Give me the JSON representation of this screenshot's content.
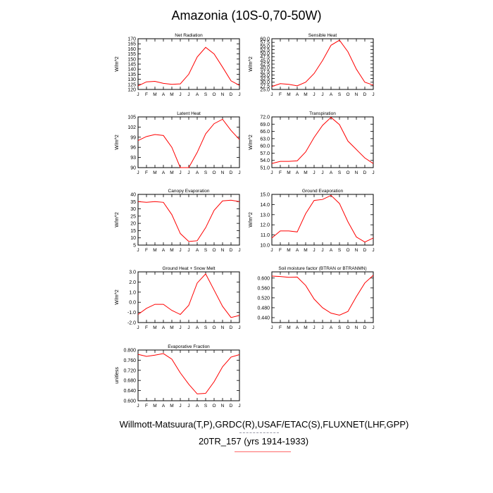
{
  "page": {
    "title": "Amazonia (10S-0,70-50W)",
    "caption_line1": "Willmott-Matsuura(T,P),GRDC(R),USAF/ETAC(S),FLUXNET(LHF,GPP)",
    "caption_line2": "20TR_157 (yrs 1914-1933)",
    "line_color": "#ff0000"
  },
  "chart_data": [
    {
      "type": "line",
      "title": "Net Radiation",
      "ylabel": "W/m^2",
      "categories": [
        "J",
        "F",
        "M",
        "A",
        "M",
        "J",
        "J",
        "A",
        "S",
        "O",
        "N",
        "D",
        "J"
      ],
      "yticks": [
        "120",
        "125",
        "130",
        "135",
        "140",
        "145",
        "150",
        "155",
        "160",
        "165",
        "170"
      ],
      "ylim": [
        120,
        170
      ],
      "values": [
        123.5,
        127.5,
        128,
        126,
        125,
        125.5,
        135,
        152,
        161.5,
        155,
        142,
        128.5,
        124
      ],
      "grid": false
    },
    {
      "type": "line",
      "title": "Sensible Heat",
      "ylabel": "W/m^2",
      "categories": [
        "J",
        "F",
        "M",
        "A",
        "M",
        "J",
        "J",
        "A",
        "S",
        "O",
        "N",
        "D",
        "J"
      ],
      "yticks": [
        "25.0",
        "27.5",
        "30.0",
        "32.5",
        "35.0",
        "37.5",
        "40.0",
        "42.5",
        "45.0",
        "47.5",
        "50.0",
        "52.5",
        "55.0",
        "57.5",
        "60.0"
      ],
      "ylim": [
        25,
        60
      ],
      "values": [
        27,
        29,
        28.5,
        27.5,
        30,
        36,
        45,
        55.5,
        59,
        51,
        39,
        30,
        28
      ],
      "grid": false
    },
    {
      "type": "line",
      "title": "Latent Heat",
      "ylabel": "W/m^2",
      "categories": [
        "J",
        "F",
        "M",
        "A",
        "M",
        "J",
        "J",
        "A",
        "S",
        "O",
        "N",
        "D",
        "J"
      ],
      "yticks": [
        "90",
        "93",
        "96",
        "99",
        "102",
        "105"
      ],
      "ylim": [
        90,
        105
      ],
      "values": [
        98,
        99.2,
        99.8,
        99.5,
        96,
        90,
        90,
        94.5,
        100,
        103,
        104.3,
        101,
        98.3
      ],
      "grid": false
    },
    {
      "type": "line",
      "title": "Transpiration",
      "ylabel": "W/m^2",
      "categories": [
        "J",
        "F",
        "M",
        "A",
        "M",
        "J",
        "J",
        "A",
        "S",
        "O",
        "N",
        "D",
        "J"
      ],
      "yticks": [
        "51.0",
        "54.0",
        "57.0",
        "60.0",
        "63.0",
        "66.0",
        "69.0",
        "72.0"
      ],
      "ylim": [
        51,
        72
      ],
      "values": [
        52.7,
        53.6,
        53.6,
        53.8,
        57.5,
        63.5,
        68.5,
        71.8,
        68.8,
        62,
        58.5,
        55,
        52.7
      ],
      "grid": false
    },
    {
      "type": "line",
      "title": "Canopy Evaporation",
      "ylabel": "W/m^2",
      "categories": [
        "J",
        "F",
        "M",
        "A",
        "M",
        "J",
        "J",
        "A",
        "S",
        "O",
        "N",
        "D",
        "J"
      ],
      "yticks": [
        "5",
        "10",
        "15",
        "20",
        "25",
        "30",
        "35",
        "40"
      ],
      "ylim": [
        5,
        40
      ],
      "values": [
        35,
        34.5,
        35,
        34.5,
        26,
        13,
        7.5,
        8,
        17,
        29,
        35.5,
        36,
        35
      ],
      "grid": false
    },
    {
      "type": "line",
      "title": "Ground Evaporation",
      "ylabel": "W/m^2",
      "categories": [
        "J",
        "F",
        "M",
        "A",
        "M",
        "J",
        "J",
        "A",
        "S",
        "O",
        "N",
        "D",
        "J"
      ],
      "yticks": [
        "10.0",
        "11.0",
        "12.0",
        "13.0",
        "14.0",
        "15.0"
      ],
      "ylim": [
        10,
        15
      ],
      "values": [
        10.7,
        11.4,
        11.4,
        11.3,
        13.1,
        14.4,
        14.5,
        14.9,
        14.1,
        12.3,
        10.8,
        10.3,
        10.7
      ],
      "grid": false
    },
    {
      "type": "line",
      "title": "Ground Heat + Snow Melt",
      "ylabel": "W/m^2",
      "categories": [
        "J",
        "F",
        "M",
        "A",
        "M",
        "J",
        "J",
        "A",
        "S",
        "O",
        "N",
        "D",
        "J"
      ],
      "yticks": [
        "-2.0",
        "-1.0",
        "0.0",
        "1.0",
        "2.0",
        "3.0"
      ],
      "ylim": [
        -2,
        3
      ],
      "values": [
        -1.2,
        -0.6,
        -0.2,
        -0.2,
        -0.8,
        -1.2,
        -0.3,
        1.9,
        2.8,
        1.2,
        -0.4,
        -1.5,
        -1.3
      ],
      "grid": false
    },
    {
      "type": "line",
      "title": "Soil moisture factor (BTRAN or BTRANMN)",
      "ylabel": "",
      "categories": [
        "J",
        "F",
        "M",
        "A",
        "M",
        "J",
        "J",
        "A",
        "S",
        "O",
        "N",
        "D",
        "J"
      ],
      "yticks": [
        "0.440",
        "0.480",
        "0.520",
        "0.560",
        "0.600"
      ],
      "ylim": [
        0.42,
        0.625
      ],
      "values": [
        0.608,
        0.606,
        0.603,
        0.604,
        0.57,
        0.515,
        0.48,
        0.458,
        0.45,
        0.465,
        0.525,
        0.58,
        0.611
      ],
      "grid": false
    },
    {
      "type": "line",
      "title": "Evaporative Fraction",
      "ylabel": "unitless",
      "categories": [
        "J",
        "F",
        "M",
        "A",
        "M",
        "J",
        "J",
        "A",
        "S",
        "O",
        "N",
        "D",
        "J"
      ],
      "yticks": [
        "0.600",
        "0.640",
        "0.680",
        "0.720",
        "0.760",
        "0.800"
      ],
      "ylim": [
        0.6,
        0.8
      ],
      "values": [
        0.783,
        0.775,
        0.78,
        0.786,
        0.764,
        0.71,
        0.665,
        0.627,
        0.629,
        0.675,
        0.734,
        0.772,
        0.782
      ],
      "grid": false
    }
  ]
}
